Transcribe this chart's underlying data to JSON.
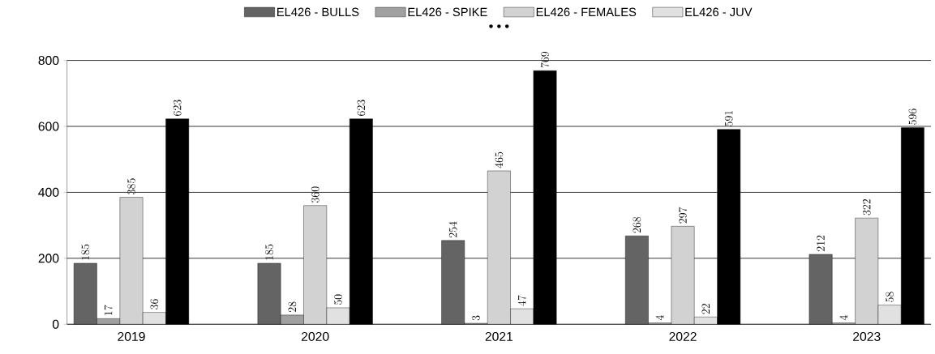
{
  "chart_data": {
    "type": "bar",
    "categories": [
      "2019",
      "2020",
      "2021",
      "2022",
      "2023"
    ],
    "series": [
      {
        "name": "EL426 - BULLS",
        "color": "#646464",
        "values": [
          185,
          185,
          254,
          268,
          212
        ]
      },
      {
        "name": "EL426 - SPIKE",
        "color": "#a0a0a0",
        "values": [
          17,
          28,
          3,
          4,
          4
        ]
      },
      {
        "name": "EL426 - FEMALES",
        "color": "#d2d2d2",
        "values": [
          385,
          360,
          465,
          297,
          322
        ]
      },
      {
        "name": "EL426 - JUV",
        "color": "#e1e1e1",
        "values": [
          36,
          50,
          47,
          22,
          58
        ]
      },
      {
        "color": "#000000",
        "values": [
          623,
          623,
          769,
          591,
          596
        ]
      }
    ],
    "ylim": [
      0,
      800
    ],
    "yticks": [
      0,
      200,
      400,
      600,
      800
    ],
    "grid": "y",
    "legend": "top",
    "data_labels": true,
    "annotations": [
      "• • •"
    ]
  }
}
